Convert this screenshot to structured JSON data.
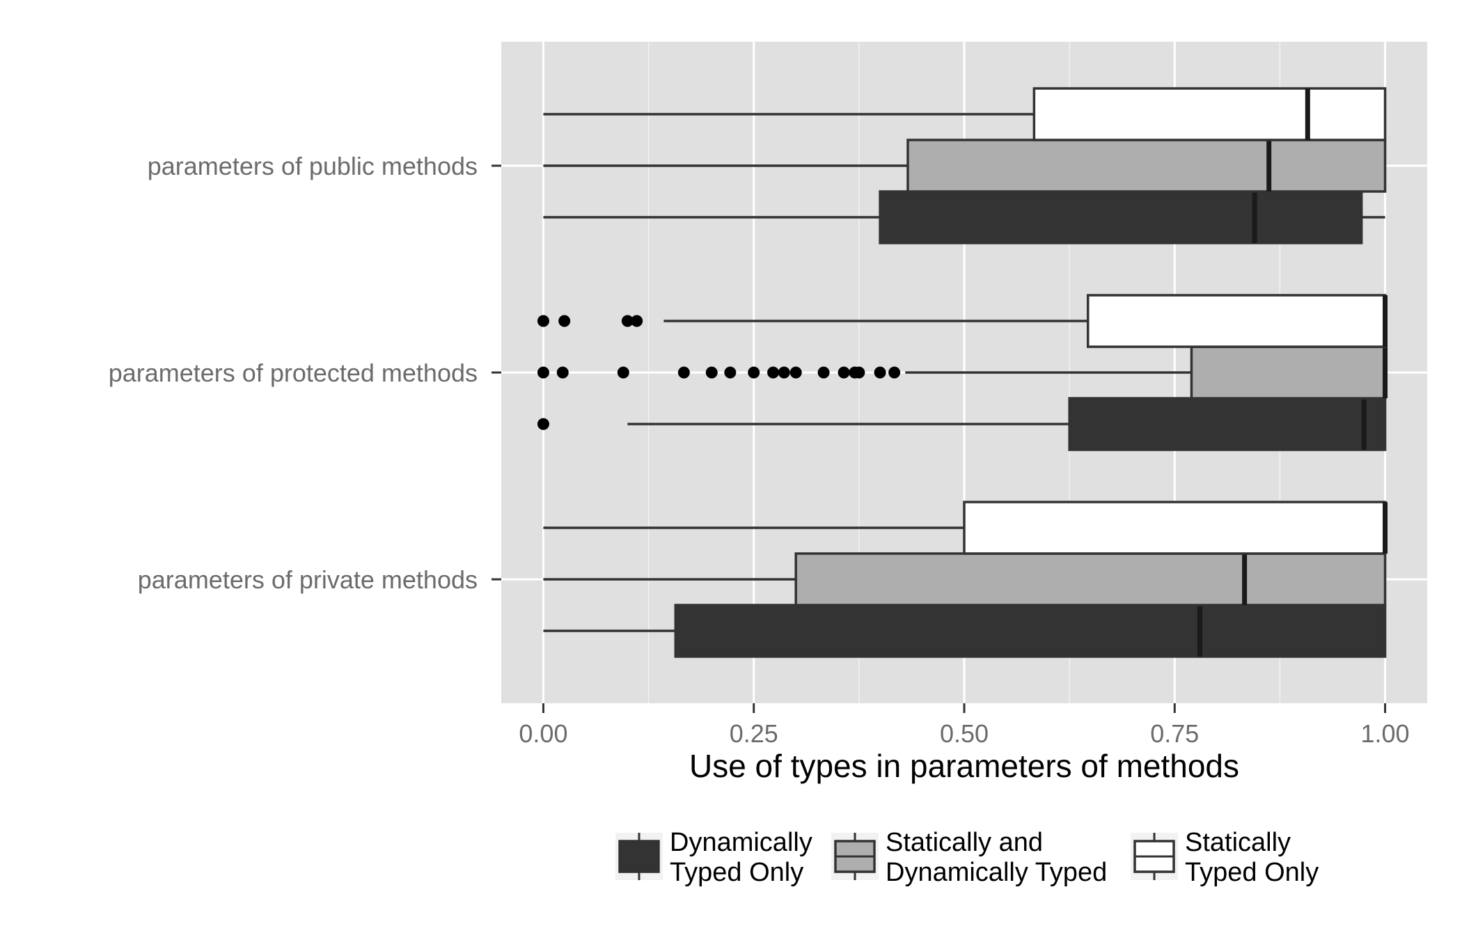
{
  "chart_data": {
    "type": "boxplot",
    "orientation": "horizontal",
    "title": "",
    "xlabel": "Use of types in parameters of methods",
    "ylabel": "",
    "xlim": [
      -0.05,
      1.05
    ],
    "x_ticks": [
      0,
      0.25,
      0.5,
      0.75,
      1.0
    ],
    "x_tick_labels": [
      "0.00",
      "0.25",
      "0.50",
      "0.75",
      "1.00"
    ],
    "categories": [
      "parameters of public methods",
      "parameters of protected methods",
      "parameters of private methods"
    ],
    "grid": true,
    "legend_position": "bottom",
    "series": [
      {
        "name": "Dynamically Typed Only",
        "legend_lines": [
          "Dynamically",
          "Typed Only"
        ],
        "color": "#333333",
        "boxes": [
          {
            "category": "parameters of public methods",
            "whisker_low": 0.0,
            "q1": 0.4,
            "median": 0.845,
            "q3": 0.972,
            "whisker_high": 1.0,
            "outliers": []
          },
          {
            "category": "parameters of protected methods",
            "whisker_low": 0.1,
            "q1": 0.625,
            "median": 0.975,
            "q3": 1.0,
            "whisker_high": 1.0,
            "outliers": [
              0.0
            ]
          },
          {
            "category": "parameters of private methods",
            "whisker_low": 0.0,
            "q1": 0.157,
            "median": 0.78,
            "q3": 1.0,
            "whisker_high": 1.0,
            "outliers": []
          }
        ]
      },
      {
        "name": "Statically and Dynamically Typed",
        "legend_lines": [
          "Statically and",
          "Dynamically Typed"
        ],
        "color": "#aeaeae",
        "boxes": [
          {
            "category": "parameters of public methods",
            "whisker_low": 0.0,
            "q1": 0.433,
            "median": 0.862,
            "q3": 1.0,
            "whisker_high": 1.0,
            "outliers": []
          },
          {
            "category": "parameters of protected methods",
            "whisker_low": 0.43,
            "q1": 0.77,
            "median": 1.0,
            "q3": 1.0,
            "whisker_high": 1.0,
            "outliers": [
              0.0,
              0.023,
              0.095,
              0.167,
              0.2,
              0.222,
              0.25,
              0.273,
              0.286,
              0.3,
              0.333,
              0.357,
              0.37,
              0.375,
              0.4,
              0.417
            ]
          },
          {
            "category": "parameters of private methods",
            "whisker_low": 0.0,
            "q1": 0.3,
            "median": 0.833,
            "q3": 1.0,
            "whisker_high": 1.0,
            "outliers": []
          }
        ]
      },
      {
        "name": "Statically Typed Only",
        "legend_lines": [
          "Statically",
          "Typed Only"
        ],
        "color": "#ffffff",
        "boxes": [
          {
            "category": "parameters of public methods",
            "whisker_low": 0.0,
            "q1": 0.583,
            "median": 0.908,
            "q3": 1.0,
            "whisker_high": 1.0,
            "outliers": []
          },
          {
            "category": "parameters of protected methods",
            "whisker_low": 0.143,
            "q1": 0.647,
            "median": 1.0,
            "q3": 1.0,
            "whisker_high": 1.0,
            "outliers": [
              0.0,
              0.025,
              0.1,
              0.111
            ]
          },
          {
            "category": "parameters of private methods",
            "whisker_low": 0.0,
            "q1": 0.5,
            "median": 1.0,
            "q3": 1.0,
            "whisker_high": 1.0,
            "outliers": []
          }
        ]
      }
    ]
  }
}
